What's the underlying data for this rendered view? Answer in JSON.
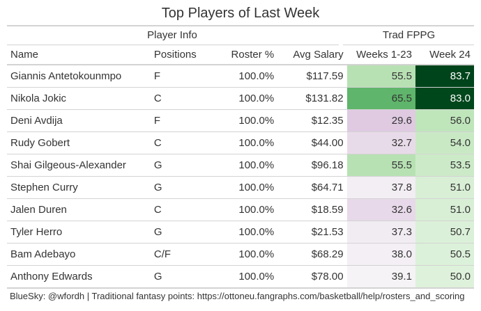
{
  "title": "Top Players of Last Week",
  "groups": {
    "player_info": "Player Info",
    "trad_fppg": "Trad FPPG"
  },
  "columns": [
    "Name",
    "Positions",
    "Roster %",
    "Avg Salary",
    "Weeks 1-23",
    "Week 24"
  ],
  "rows": [
    {
      "name": "Giannis Antetokounmpo",
      "pos": "F",
      "roster": "100.0%",
      "salary": "$117.59",
      "w1": "55.5",
      "w24": "83.7",
      "w1_bg": "#b7e1b3",
      "w24_bg": "#00441b",
      "w1_fg": "#333333",
      "w24_fg": "#ffffff"
    },
    {
      "name": "Nikola Jokic",
      "pos": "C",
      "roster": "100.0%",
      "salary": "$131.82",
      "w1": "65.5",
      "w24": "83.0",
      "w1_bg": "#5fb56b",
      "w24_bg": "#00471c",
      "w1_fg": "#333333",
      "w24_fg": "#ffffff"
    },
    {
      "name": "Deni Avdija",
      "pos": "F",
      "roster": "100.0%",
      "salary": "$12.35",
      "w1": "29.6",
      "w24": "56.0",
      "w1_bg": "#dfcae2",
      "w24_bg": "#bfe5bb",
      "w1_fg": "#333333",
      "w24_fg": "#333333"
    },
    {
      "name": "Rudy Gobert",
      "pos": "C",
      "roster": "100.0%",
      "salary": "$44.00",
      "w1": "32.7",
      "w24": "54.0",
      "w1_bg": "#e8dbe9",
      "w24_bg": "#c9e9c5",
      "w1_fg": "#333333",
      "w24_fg": "#333333"
    },
    {
      "name": "Shai Gilgeous-Alexander",
      "pos": "G",
      "roster": "100.0%",
      "salary": "$96.18",
      "w1": "55.5",
      "w24": "53.5",
      "w1_bg": "#b7e1b3",
      "w24_bg": "#cceac8",
      "w1_fg": "#333333",
      "w24_fg": "#333333"
    },
    {
      "name": "Stephen Curry",
      "pos": "G",
      "roster": "100.0%",
      "salary": "$64.71",
      "w1": "37.8",
      "w24": "51.0",
      "w1_bg": "#f2eef3",
      "w24_bg": "#d8efd5",
      "w1_fg": "#333333",
      "w24_fg": "#333333"
    },
    {
      "name": "Jalen Duren",
      "pos": "C",
      "roster": "100.0%",
      "salary": "$18.59",
      "w1": "32.6",
      "w24": "51.0",
      "w1_bg": "#e7d9e9",
      "w24_bg": "#d8efd5",
      "w1_fg": "#333333",
      "w24_fg": "#333333"
    },
    {
      "name": "Tyler Herro",
      "pos": "G",
      "roster": "100.0%",
      "salary": "$21.53",
      "w1": "37.3",
      "w24": "50.7",
      "w1_bg": "#f1ecf2",
      "w24_bg": "#dbf0d8",
      "w1_fg": "#333333",
      "w24_fg": "#333333"
    },
    {
      "name": "Bam Adebayo",
      "pos": "C/F",
      "roster": "100.0%",
      "salary": "$68.29",
      "w1": "38.0",
      "w24": "50.5",
      "w1_bg": "#f3eff4",
      "w24_bg": "#dcf1d9",
      "w1_fg": "#333333",
      "w24_fg": "#333333"
    },
    {
      "name": "Anthony Edwards",
      "pos": "G",
      "roster": "100.0%",
      "salary": "$78.00",
      "w1": "39.1",
      "w24": "50.0",
      "w1_bg": "#f5f3f5",
      "w24_bg": "#def2db",
      "w1_fg": "#333333",
      "w24_fg": "#333333"
    }
  ],
  "footer": "BlueSky: @wfordh | Traditional fantasy points: https://ottoneu.fangraphs.com/basketball/help/rosters_and_scoring"
}
